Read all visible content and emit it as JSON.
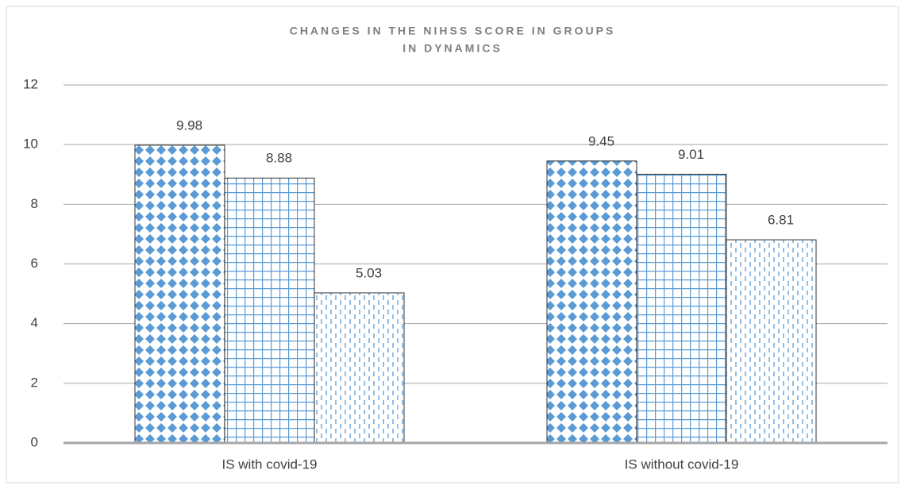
{
  "chart_data": {
    "type": "bar",
    "title": [
      "CHANGES IN THE NIHSS SCORE  IN GROUPS",
      "IN DYNAMICS"
    ],
    "categories": [
      "IS with covid-19",
      "IS without covid-19"
    ],
    "series": [
      {
        "color": "#5b9bd5",
        "pattern": "diamonds",
        "values": [
          9.98,
          9.45
        ]
      },
      {
        "color": "#5b9bd5",
        "pattern": "grid",
        "values": [
          8.88,
          9.01
        ]
      },
      {
        "color": "#5b9bd5",
        "pattern": "dashes",
        "values": [
          5.03,
          6.81
        ]
      }
    ],
    "ylim": [
      0,
      12
    ],
    "yticks": [
      0,
      2,
      4,
      6,
      8,
      10,
      12
    ],
    "grid": true
  }
}
